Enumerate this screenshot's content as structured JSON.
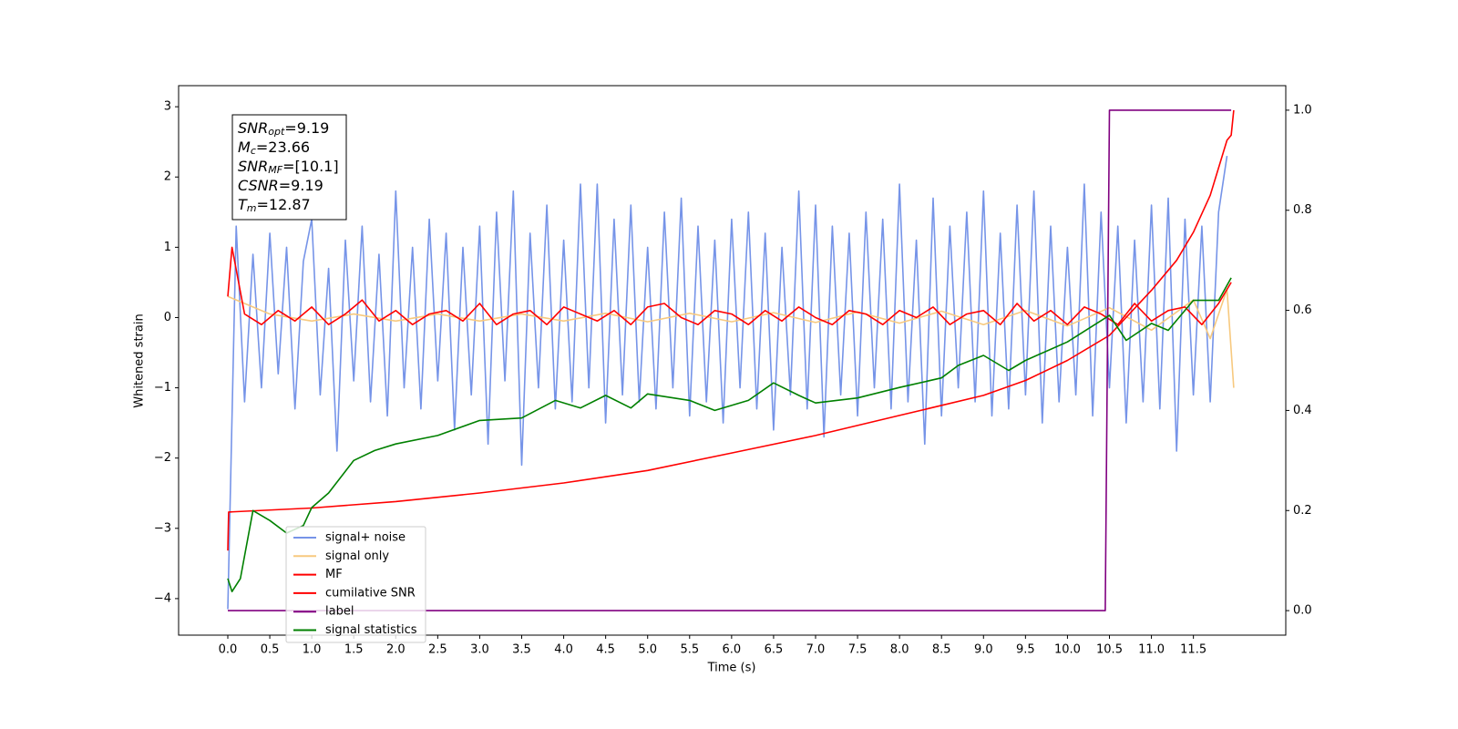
{
  "chart_data": {
    "type": "line",
    "xlabel": "Time (s)",
    "ylabel": "Whitened strain",
    "xlim": [
      -0.586,
      12.6
    ],
    "ylim": [
      -4.52,
      3.3
    ],
    "y2lim": [
      -0.049,
      1.049
    ],
    "xticks": [
      {
        "value": 0,
        "label": "0.0"
      },
      {
        "value": 0.5,
        "label": "0.5"
      },
      {
        "value": 1,
        "label": "1.0"
      },
      {
        "value": 1.5,
        "label": "1.5"
      },
      {
        "value": 2,
        "label": "2.0"
      },
      {
        "value": 2.5,
        "label": "2.5"
      },
      {
        "value": 3,
        "label": "3.0"
      },
      {
        "value": 3.5,
        "label": "3.5"
      },
      {
        "value": 4,
        "label": "4.0"
      },
      {
        "value": 4.5,
        "label": "4.5"
      },
      {
        "value": 5,
        "label": "5.0"
      },
      {
        "value": 5.5,
        "label": "5.5"
      },
      {
        "value": 6,
        "label": "6.0"
      },
      {
        "value": 6.5,
        "label": "6.5"
      },
      {
        "value": 7,
        "label": "7.0"
      },
      {
        "value": 7.5,
        "label": "7.5"
      },
      {
        "value": 8,
        "label": "8.0"
      },
      {
        "value": 8.5,
        "label": "8.5"
      },
      {
        "value": 9,
        "label": "9.0"
      },
      {
        "value": 9.5,
        "label": "9.5"
      },
      {
        "value": 10,
        "label": "10.0"
      },
      {
        "value": 10.5,
        "label": "10.5"
      },
      {
        "value": 11,
        "label": "11.0"
      },
      {
        "value": 11.5,
        "label": "11.5"
      }
    ],
    "yticks": [
      {
        "value": -4,
        "label": "−4"
      },
      {
        "value": -3,
        "label": "−3"
      },
      {
        "value": -2,
        "label": "−2"
      },
      {
        "value": -1,
        "label": "−1"
      },
      0,
      1,
      2,
      3
    ],
    "y2ticks": [
      {
        "value": 0,
        "label": "0.0"
      },
      {
        "value": 0.2,
        "label": "0.2"
      },
      {
        "value": 0.4,
        "label": "0.4"
      },
      {
        "value": 0.6,
        "label": "0.6"
      },
      {
        "value": 0.8,
        "label": "0.8"
      },
      {
        "value": 1,
        "label": "1.0"
      }
    ],
    "legend": "lower left",
    "annotations": [
      {
        "symbol": "SNR",
        "subscript": "opt",
        "text": "=9.19"
      },
      {
        "symbol": "M",
        "subscript": "c",
        "text": "=23.66"
      },
      {
        "symbol": "SNR",
        "subscript": "MF",
        "text": "=[10.1]"
      },
      {
        "symbol": "CSNR",
        "text": "=9.19"
      },
      {
        "symbol": "T",
        "subscript": "m",
        "text": "=12.87"
      }
    ],
    "series": [
      {
        "name": "signal+ noise",
        "color": "#7694e8",
        "axis": "y",
        "x": [
          0.0,
          0.1,
          0.2,
          0.3,
          0.4,
          0.5,
          0.6,
          0.7,
          0.8,
          0.9,
          1.0,
          1.1,
          1.2,
          1.3,
          1.4,
          1.5,
          1.6,
          1.7,
          1.8,
          1.9,
          2.0,
          2.1,
          2.2,
          2.3,
          2.4,
          2.5,
          2.6,
          2.7,
          2.8,
          2.9,
          3.0,
          3.1,
          3.2,
          3.3,
          3.4,
          3.5,
          3.6,
          3.7,
          3.8,
          3.9,
          4.0,
          4.1,
          4.2,
          4.3,
          4.4,
          4.5,
          4.6,
          4.7,
          4.8,
          4.9,
          5.0,
          5.1,
          5.2,
          5.3,
          5.4,
          5.5,
          5.6,
          5.7,
          5.8,
          5.9,
          6.0,
          6.1,
          6.2,
          6.3,
          6.4,
          6.5,
          6.6,
          6.7,
          6.8,
          6.9,
          7.0,
          7.1,
          7.2,
          7.3,
          7.4,
          7.5,
          7.6,
          7.7,
          7.8,
          7.9,
          8.0,
          8.1,
          8.2,
          8.3,
          8.4,
          8.5,
          8.6,
          8.7,
          8.8,
          8.9,
          9.0,
          9.1,
          9.2,
          9.3,
          9.4,
          9.5,
          9.6,
          9.7,
          9.8,
          9.9,
          10.0,
          10.1,
          10.2,
          10.3,
          10.4,
          10.5,
          10.6,
          10.7,
          10.8,
          10.9,
          11.0,
          11.1,
          11.2,
          11.3,
          11.4,
          11.5,
          11.6,
          11.7,
          11.8,
          11.9
        ],
        "values": [
          -4.15,
          1.3,
          -1.2,
          0.9,
          -1.0,
          1.2,
          -0.8,
          1.0,
          -1.3,
          0.8,
          1.4,
          -1.1,
          0.7,
          -1.9,
          1.1,
          -0.9,
          1.3,
          -1.2,
          0.9,
          -1.4,
          1.8,
          -1.0,
          1.0,
          -1.3,
          1.4,
          -0.9,
          1.2,
          -1.6,
          1.0,
          -1.1,
          1.3,
          -1.8,
          1.5,
          -0.9,
          1.8,
          -2.1,
          1.2,
          -1.0,
          1.6,
          -1.3,
          1.1,
          -1.2,
          1.9,
          -1.0,
          1.9,
          -1.5,
          1.4,
          -1.1,
          1.6,
          -1.2,
          1.0,
          -1.3,
          1.5,
          -1.0,
          1.7,
          -1.4,
          1.3,
          -1.2,
          1.1,
          -1.5,
          1.4,
          -1.0,
          1.5,
          -1.3,
          1.2,
          -1.6,
          1.0,
          -1.1,
          1.8,
          -1.3,
          1.6,
          -1.7,
          1.3,
          -1.1,
          1.2,
          -1.4,
          1.5,
          -1.0,
          1.4,
          -1.3,
          1.9,
          -1.2,
          1.1,
          -1.8,
          1.7,
          -1.4,
          1.3,
          -1.0,
          1.5,
          -1.2,
          1.8,
          -1.4,
          1.2,
          -1.3,
          1.6,
          -1.1,
          1.8,
          -1.5,
          1.3,
          -1.2,
          1.0,
          -1.1,
          1.9,
          -1.4,
          1.5,
          -1.0,
          1.3,
          -1.5,
          1.1,
          -1.2,
          1.6,
          -1.3,
          1.7,
          -1.9,
          1.4,
          -1.1,
          1.3,
          -1.2,
          1.5,
          2.3
        ]
      },
      {
        "name": "signal only",
        "color": "#f7c97f",
        "axis": "y",
        "x": [
          0,
          0.5,
          1,
          1.5,
          2,
          2.5,
          3,
          3.5,
          4,
          4.5,
          5,
          5.5,
          6,
          6.5,
          7,
          7.5,
          8,
          8.5,
          9,
          9.5,
          10,
          10.5,
          11,
          11.5,
          11.7,
          11.9,
          11.98
        ],
        "values": [
          0.3,
          0.05,
          -0.05,
          0.05,
          -0.05,
          0.05,
          -0.05,
          0.05,
          -0.05,
          0.06,
          -0.06,
          0.06,
          -0.06,
          0.07,
          -0.07,
          0.08,
          -0.08,
          0.09,
          -0.1,
          0.1,
          -0.12,
          0.14,
          -0.18,
          0.25,
          -0.3,
          0.4,
          -1.0
        ]
      },
      {
        "name": "MF",
        "color": "#ff0000",
        "axis": "y",
        "x": [
          0,
          0.05,
          0.2,
          0.4,
          0.6,
          0.8,
          1.0,
          1.2,
          1.4,
          1.6,
          1.8,
          2.0,
          2.2,
          2.4,
          2.6,
          2.8,
          3.0,
          3.2,
          3.4,
          3.6,
          3.8,
          4.0,
          4.2,
          4.4,
          4.6,
          4.8,
          5.0,
          5.2,
          5.4,
          5.6,
          5.8,
          6.0,
          6.2,
          6.4,
          6.6,
          6.8,
          7.0,
          7.2,
          7.4,
          7.6,
          7.8,
          8.0,
          8.2,
          8.4,
          8.6,
          8.8,
          9.0,
          9.2,
          9.4,
          9.6,
          9.8,
          10.0,
          10.2,
          10.4,
          10.6,
          10.8,
          11.0,
          11.2,
          11.4,
          11.6,
          11.8,
          11.95
        ],
        "values": [
          0.3,
          1.0,
          0.05,
          -0.1,
          0.1,
          -0.05,
          0.15,
          -0.1,
          0.05,
          0.25,
          -0.05,
          0.1,
          -0.1,
          0.05,
          0.1,
          -0.05,
          0.2,
          -0.1,
          0.05,
          0.1,
          -0.1,
          0.15,
          0.05,
          -0.05,
          0.1,
          -0.1,
          0.15,
          0.2,
          0.0,
          -0.1,
          0.1,
          0.05,
          -0.1,
          0.1,
          -0.05,
          0.15,
          0.0,
          -0.1,
          0.1,
          0.05,
          -0.1,
          0.1,
          0.0,
          0.15,
          -0.1,
          0.05,
          0.1,
          -0.1,
          0.2,
          -0.05,
          0.1,
          -0.1,
          0.15,
          0.05,
          -0.1,
          0.2,
          -0.05,
          0.1,
          0.15,
          -0.1,
          0.2,
          0.5
        ]
      },
      {
        "name": "cumilative SNR",
        "color": "#ff0000",
        "axis": "y2",
        "x": [
          0,
          0.01,
          1,
          2,
          3,
          4,
          5,
          6,
          7,
          8,
          9,
          9.5,
          10,
          10.5,
          11,
          11.3,
          11.5,
          11.7,
          11.9,
          11.95,
          11.98
        ],
        "values": [
          0.12,
          0.197,
          0.205,
          0.218,
          0.235,
          0.255,
          0.28,
          0.315,
          0.35,
          0.39,
          0.43,
          0.46,
          0.5,
          0.55,
          0.64,
          0.7,
          0.756,
          0.83,
          0.94,
          0.95,
          1.0
        ]
      },
      {
        "name": "label",
        "color": "#800080",
        "axis": "y2",
        "x": [
          0,
          10.45,
          10.5,
          11.95
        ],
        "values": [
          0,
          0,
          1,
          1
        ]
      },
      {
        "name": "signal statistics",
        "color": "#008000",
        "axis": "y2",
        "x": [
          0,
          0.05,
          0.15,
          0.3,
          0.5,
          0.7,
          0.9,
          1.0,
          1.2,
          1.5,
          1.75,
          2.0,
          2.5,
          3.0,
          3.5,
          3.9,
          4.2,
          4.5,
          4.8,
          5.0,
          5.5,
          5.8,
          6.2,
          6.5,
          6.8,
          7.0,
          7.5,
          8.0,
          8.5,
          8.7,
          9.0,
          9.3,
          9.5,
          10.0,
          10.5,
          10.7,
          11.0,
          11.2,
          11.5,
          11.8,
          11.95
        ],
        "values": [
          0.064,
          0.038,
          0.064,
          0.2,
          0.18,
          0.155,
          0.17,
          0.206,
          0.235,
          0.3,
          0.32,
          0.333,
          0.35,
          0.38,
          0.385,
          0.42,
          0.405,
          0.43,
          0.405,
          0.433,
          0.42,
          0.4,
          0.42,
          0.455,
          0.43,
          0.415,
          0.425,
          0.446,
          0.465,
          0.49,
          0.51,
          0.48,
          0.5,
          0.537,
          0.59,
          0.54,
          0.574,
          0.56,
          0.62,
          0.62,
          0.665
        ]
      }
    ]
  }
}
